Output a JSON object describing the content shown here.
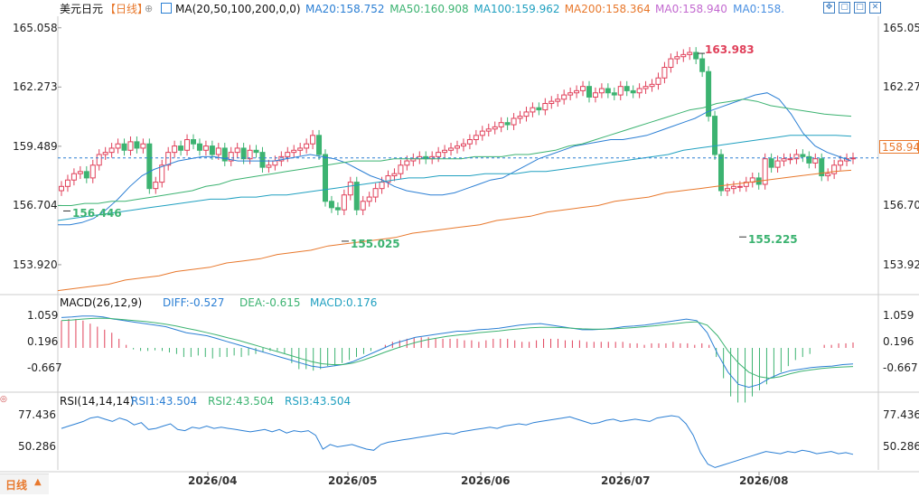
{
  "header": {
    "symbol": "美元日元",
    "period": "【日线】",
    "ma_title": "MA(20,50,100,200,0,0)",
    "ma_values": [
      {
        "label": "MA20:158.752",
        "color": "#2b7fd4"
      },
      {
        "label": "MA50:160.908",
        "color": "#3cb371"
      },
      {
        "label": "MA100:159.962",
        "color": "#20a0c0"
      },
      {
        "label": "MA200:158.364",
        "color": "#e8782c"
      },
      {
        "label": "MA0:158.940",
        "color": "#c36ad0"
      },
      {
        "label": "MA0:158.",
        "color": "#4a90e2"
      }
    ]
  },
  "toolbar_icons": [
    "grid-icon",
    "restore-icon",
    "maximize-icon",
    "close-icon"
  ],
  "macd_header": {
    "title": "MACD(26,12,9)",
    "items": [
      {
        "label": "DIFF:-0.527",
        "color": "#2b7fd4"
      },
      {
        "label": "DEA:-0.615",
        "color": "#3cb371"
      },
      {
        "label": "MACD:0.176",
        "color": "#20a0c0"
      }
    ]
  },
  "rsi_header": {
    "title": "RSI(14,14,14)",
    "items": [
      {
        "label": "RSI1:43.504",
        "color": "#2b7fd4"
      },
      {
        "label": "RSI2:43.504",
        "color": "#3cb371"
      },
      {
        "label": "RSI3:43.504",
        "color": "#20a0c0"
      }
    ]
  },
  "price_axis": [
    "165.058",
    "162.273",
    "159.489",
    "156.704",
    "153.920"
  ],
  "macd_axis": [
    "1.059",
    "0.196",
    "-0.667"
  ],
  "rsi_axis": [
    "77.436",
    "50.286"
  ],
  "current_price_tag": "158.940",
  "x_axis_labels": [
    "2026/04",
    "2026/05",
    "2026/06",
    "2026/07",
    "2026/08"
  ],
  "bottom_tab": "日线",
  "chart_data": [
    {
      "type": "candlestick",
      "panel": "price",
      "ylim": [
        152.6,
        165.6
      ],
      "annotations": [
        {
          "label": "163.983",
          "value": 163.983,
          "kind": "high"
        },
        {
          "label": "156.446",
          "value": 156.446,
          "kind": "low"
        },
        {
          "label": "155.025",
          "value": 155.025,
          "kind": "low"
        },
        {
          "label": "155.225",
          "value": 155.225,
          "kind": "low"
        }
      ],
      "close_series": [
        157.6,
        157.9,
        158.2,
        158.3,
        158.0,
        158.6,
        159.1,
        159.2,
        159.4,
        159.6,
        159.3,
        159.7,
        159.4,
        159.6,
        157.5,
        157.8,
        158.6,
        159.2,
        159.5,
        159.3,
        159.8,
        159.6,
        159.3,
        159.5,
        159.1,
        159.4,
        158.8,
        159.2,
        159.4,
        158.9,
        159.3,
        159.2,
        158.5,
        158.6,
        158.8,
        159.0,
        159.2,
        159.3,
        159.4,
        159.6,
        160.0,
        159.1,
        156.9,
        156.6,
        156.5,
        157.2,
        157.8,
        156.5,
        156.9,
        157.1,
        157.5,
        157.8,
        158.1,
        158.2,
        158.6,
        158.8,
        158.9,
        159.0,
        158.9,
        159.0,
        159.2,
        159.3,
        159.4,
        159.5,
        159.6,
        159.8,
        160.0,
        160.2,
        160.3,
        160.4,
        160.6,
        160.5,
        160.8,
        160.9,
        161.1,
        161.3,
        161.2,
        161.5,
        161.6,
        161.7,
        161.9,
        162.0,
        162.1,
        162.3,
        161.8,
        162.0,
        162.2,
        162.0,
        161.9,
        162.3,
        162.1,
        162.0,
        162.2,
        162.3,
        162.4,
        162.7,
        163.2,
        163.6,
        163.7,
        163.8,
        163.9,
        163.6,
        163.0,
        160.9,
        159.1,
        157.4,
        157.5,
        157.6,
        157.6,
        157.8,
        158.0,
        157.7,
        158.9,
        158.5,
        158.8,
        158.9,
        158.9,
        159.1,
        159.0,
        158.7,
        158.9,
        158.1,
        158.2,
        158.6,
        158.8,
        158.9,
        158.94
      ],
      "ma_series": [
        {
          "name": "MA20",
          "color": "#2b7fd4",
          "values": [
            155.8,
            155.8,
            155.9,
            156.1,
            156.5,
            157.0,
            157.6,
            158.1,
            158.4,
            158.6,
            158.8,
            158.9,
            159.0,
            159.0,
            158.9,
            158.8,
            158.8,
            158.8,
            158.8,
            158.9,
            159.0,
            159.1,
            159.0,
            158.9,
            158.7,
            158.4,
            158.1,
            157.9,
            157.6,
            157.4,
            157.3,
            157.2,
            157.2,
            157.3,
            157.5,
            157.7,
            157.9,
            158.0,
            158.3,
            158.6,
            158.9,
            159.1,
            159.3,
            159.5,
            159.6,
            159.7,
            159.8,
            159.8,
            159.9,
            160.0,
            160.2,
            160.4,
            160.6,
            160.8,
            161.1,
            161.3,
            161.5,
            161.7,
            161.9,
            162.0,
            161.7,
            161.0,
            160.1,
            159.5,
            159.2,
            159.0,
            158.8
          ]
        },
        {
          "name": "MA50",
          "color": "#3cb371",
          "values": [
            156.7,
            156.7,
            156.8,
            156.8,
            156.9,
            156.9,
            157.0,
            157.1,
            157.2,
            157.3,
            157.4,
            157.6,
            157.7,
            157.9,
            158.0,
            158.1,
            158.2,
            158.3,
            158.4,
            158.5,
            158.6,
            158.7,
            158.8,
            158.8,
            158.8,
            158.9,
            158.9,
            158.9,
            158.9,
            158.9,
            158.9,
            159.0,
            159.0,
            159.0,
            159.1,
            159.1,
            159.2,
            159.3,
            159.5,
            159.6,
            159.8,
            160.0,
            160.2,
            160.4,
            160.6,
            160.8,
            161.0,
            161.2,
            161.3,
            161.5,
            161.6,
            161.7,
            161.6,
            161.4,
            161.3,
            161.2,
            161.1,
            161.0,
            160.95,
            160.9
          ]
        },
        {
          "name": "MA100",
          "color": "#20a0c0",
          "values": [
            156.0,
            156.1,
            156.2,
            156.3,
            156.4,
            156.5,
            156.6,
            156.7,
            156.8,
            156.9,
            157.0,
            157.0,
            157.1,
            157.1,
            157.2,
            157.2,
            157.3,
            157.4,
            157.5,
            157.6,
            157.7,
            157.8,
            157.9,
            158.0,
            158.0,
            158.1,
            158.1,
            158.1,
            158.2,
            158.2,
            158.2,
            158.3,
            158.3,
            158.4,
            158.5,
            158.6,
            158.7,
            158.8,
            158.9,
            159.0,
            159.1,
            159.3,
            159.4,
            159.5,
            159.6,
            159.7,
            159.8,
            159.9,
            160.0,
            160.0,
            160.0,
            160.0,
            159.96
          ]
        },
        {
          "name": "MA200",
          "color": "#e8782c",
          "values": [
            152.7,
            152.8,
            152.9,
            153.0,
            153.2,
            153.3,
            153.4,
            153.6,
            153.7,
            153.8,
            154.0,
            154.1,
            154.2,
            154.4,
            154.5,
            154.6,
            154.8,
            154.9,
            155.0,
            155.1,
            155.2,
            155.4,
            155.5,
            155.6,
            155.7,
            155.8,
            156.0,
            156.1,
            156.2,
            156.4,
            156.5,
            156.6,
            156.7,
            156.9,
            157.0,
            157.1,
            157.3,
            157.4,
            157.5,
            157.6,
            157.7,
            157.8,
            157.9,
            158.0,
            158.1,
            158.2,
            158.3,
            158.36
          ]
        }
      ]
    },
    {
      "type": "bar+line",
      "panel": "macd",
      "ylim": [
        -1.4,
        1.4
      ],
      "histogram": [
        0.9,
        0.95,
        0.95,
        0.9,
        0.8,
        0.7,
        0.6,
        0.5,
        0.3,
        0.1,
        -0.05,
        -0.1,
        -0.1,
        -0.08,
        -0.1,
        -0.15,
        -0.2,
        -0.3,
        -0.3,
        -0.25,
        -0.3,
        -0.35,
        -0.3,
        -0.3,
        -0.25,
        -0.3,
        -0.25,
        -0.2,
        -0.15,
        -0.1,
        -0.1,
        -0.2,
        -0.5,
        -0.7,
        -0.7,
        -0.75,
        -0.7,
        -0.6,
        -0.6,
        -0.5,
        -0.4,
        -0.3,
        -0.2,
        -0.1,
        0.0,
        0.1,
        0.2,
        0.25,
        0.3,
        0.35,
        0.35,
        0.35,
        0.3,
        0.3,
        0.3,
        0.3,
        0.25,
        0.25,
        0.2,
        0.25,
        0.3,
        0.3,
        0.3,
        0.25,
        0.2,
        0.2,
        0.25,
        0.3,
        0.3,
        0.3,
        0.25,
        0.25,
        0.25,
        0.2,
        0.2,
        0.2,
        0.2,
        0.2,
        0.2,
        0.15,
        0.15,
        0.1,
        0.15,
        0.15,
        0.15,
        0.2,
        0.15,
        0.15,
        0.1,
        0.15,
        0.1,
        -0.3,
        -1.0,
        -1.6,
        -1.8,
        -1.8,
        -1.6,
        -1.4,
        -1.2,
        -1.0,
        -0.8,
        -0.6,
        -0.4,
        -0.3,
        -0.2,
        0.0,
        0.1,
        0.1,
        0.15,
        0.15,
        0.18
      ],
      "diff": [
        1.0,
        1.02,
        1.05,
        1.05,
        1.02,
        0.95,
        0.9,
        0.85,
        0.8,
        0.75,
        0.7,
        0.6,
        0.5,
        0.45,
        0.4,
        0.3,
        0.2,
        0.1,
        0.0,
        -0.1,
        -0.2,
        -0.3,
        -0.4,
        -0.5,
        -0.6,
        -0.65,
        -0.6,
        -0.55,
        -0.45,
        -0.3,
        -0.15,
        0.0,
        0.15,
        0.25,
        0.35,
        0.4,
        0.45,
        0.5,
        0.55,
        0.55,
        0.6,
        0.62,
        0.65,
        0.7,
        0.75,
        0.78,
        0.8,
        0.75,
        0.7,
        0.65,
        0.6,
        0.6,
        0.62,
        0.65,
        0.7,
        0.72,
        0.75,
        0.8,
        0.85,
        0.9,
        0.95,
        0.9,
        0.5,
        -0.2,
        -0.8,
        -1.2,
        -1.3,
        -1.2,
        -1.0,
        -0.85,
        -0.75,
        -0.7,
        -0.65,
        -0.62,
        -0.6,
        -0.55,
        -0.527
      ],
      "dea": [
        0.9,
        0.92,
        0.95,
        0.97,
        0.98,
        0.96,
        0.93,
        0.9,
        0.87,
        0.83,
        0.78,
        0.72,
        0.65,
        0.58,
        0.5,
        0.42,
        0.33,
        0.25,
        0.15,
        0.05,
        -0.05,
        -0.15,
        -0.25,
        -0.35,
        -0.45,
        -0.52,
        -0.55,
        -0.55,
        -0.5,
        -0.4,
        -0.28,
        -0.15,
        -0.03,
        0.08,
        0.18,
        0.26,
        0.32,
        0.38,
        0.42,
        0.46,
        0.5,
        0.53,
        0.56,
        0.6,
        0.63,
        0.66,
        0.68,
        0.68,
        0.67,
        0.65,
        0.63,
        0.62,
        0.62,
        0.63,
        0.65,
        0.67,
        0.7,
        0.73,
        0.77,
        0.8,
        0.84,
        0.86,
        0.75,
        0.4,
        -0.1,
        -0.5,
        -0.8,
        -0.95,
        -1.0,
        -0.95,
        -0.85,
        -0.77,
        -0.72,
        -0.68,
        -0.65,
        -0.63,
        -0.615
      ]
    },
    {
      "type": "line",
      "panel": "rsi",
      "ylim": [
        30,
        88
      ],
      "series": [
        {
          "name": "RSI1",
          "values": [
            66,
            68,
            70,
            72,
            75,
            76,
            74,
            72,
            75,
            73,
            69,
            71,
            65,
            66,
            68,
            70,
            65,
            64,
            67,
            66,
            68,
            66,
            67,
            66,
            65,
            64,
            63,
            64,
            65,
            63,
            65,
            62,
            64,
            63,
            64,
            60,
            48,
            52,
            50,
            51,
            52,
            50,
            48,
            47,
            52,
            54,
            55,
            56,
            57,
            58,
            59,
            60,
            61,
            62,
            61,
            63,
            64,
            65,
            66,
            67,
            66,
            68,
            69,
            70,
            69,
            71,
            72,
            73,
            74,
            75,
            76,
            74,
            72,
            70,
            71,
            73,
            74,
            72,
            73,
            74,
            73,
            72,
            75,
            76,
            77,
            76,
            70,
            60,
            45,
            35,
            32,
            34,
            36,
            38,
            40,
            42,
            44,
            46,
            45,
            44,
            46,
            45,
            47,
            46,
            44,
            45,
            46,
            44,
            45,
            43.5
          ]
        }
      ]
    }
  ]
}
